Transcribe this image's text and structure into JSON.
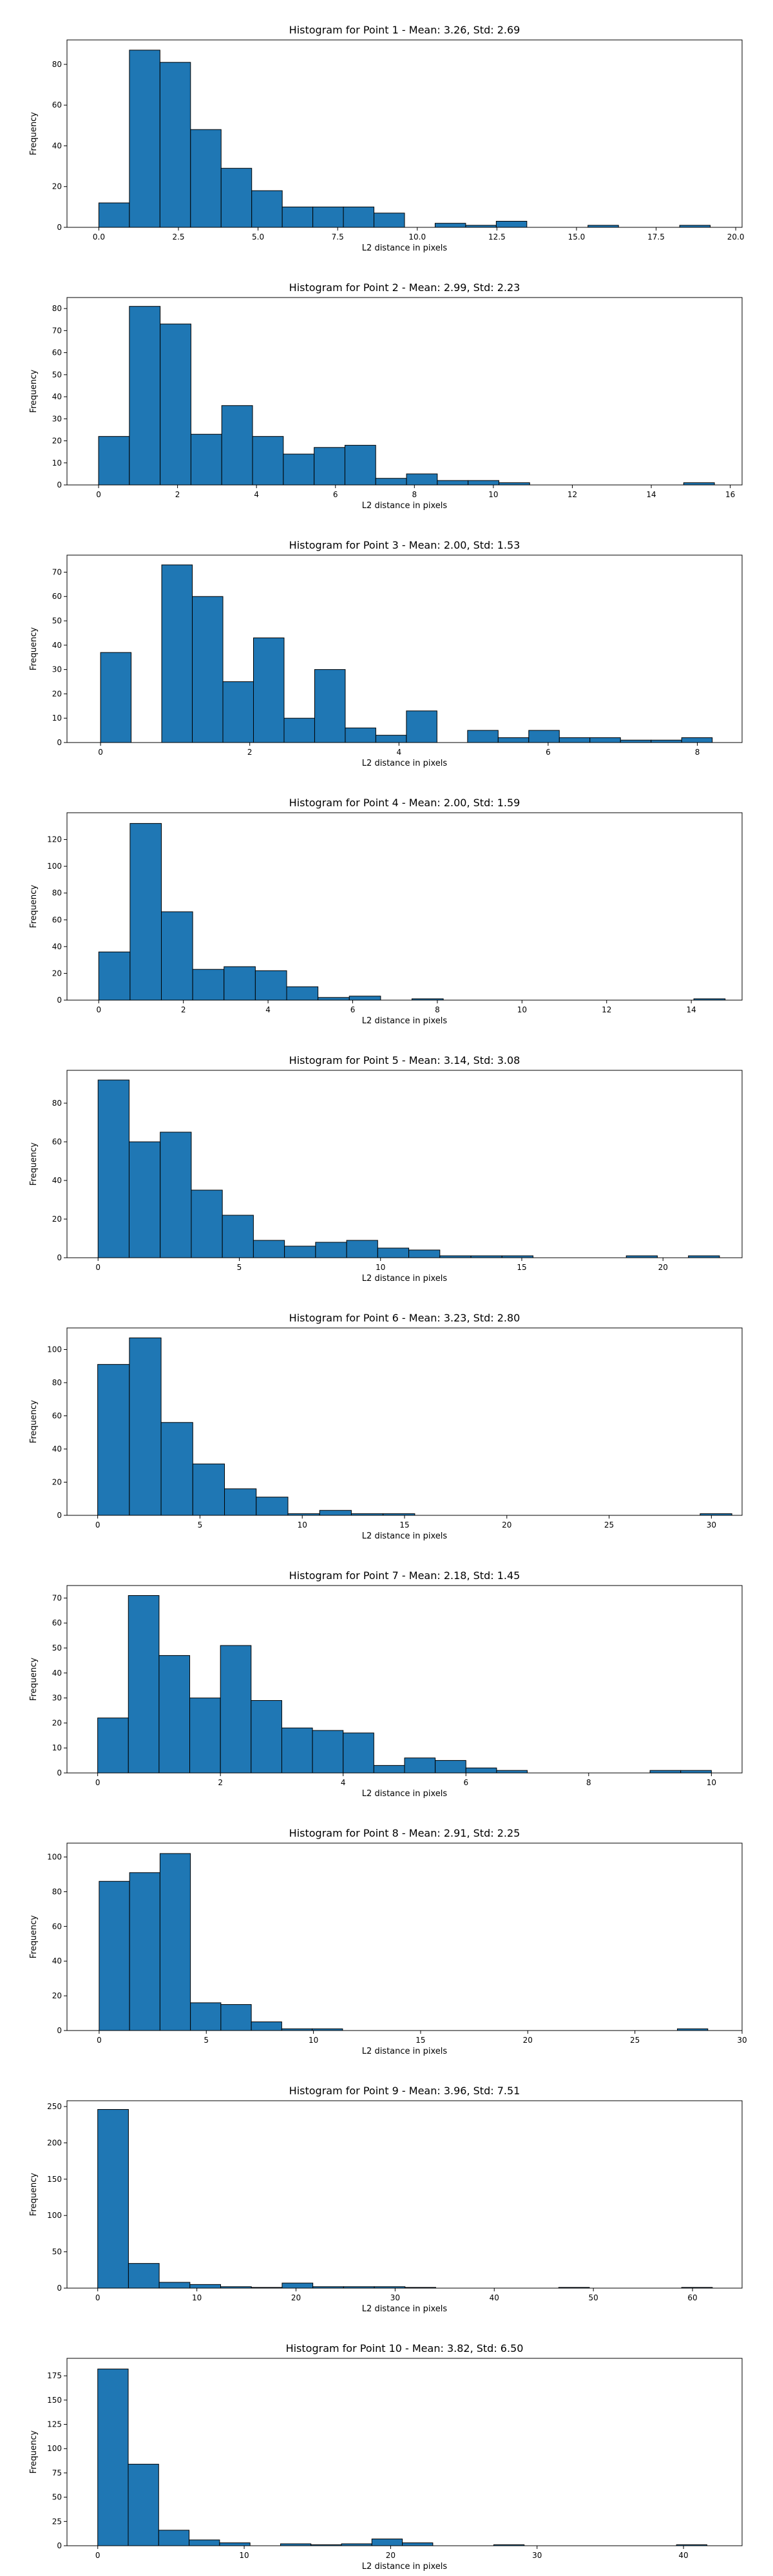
{
  "figure": {
    "background": "#ffffff",
    "bar_color": "#1f77b4",
    "bar_edge": "#000000"
  },
  "chart_data": [
    {
      "type": "bar",
      "title": "Histogram for Point 1 - Mean: 3.26, Std: 2.69",
      "xlabel": "L2 distance in pixels",
      "ylabel": "Frequency",
      "xlim": [
        -1,
        20.2
      ],
      "ylim": [
        0,
        92
      ],
      "xticks": [
        0.0,
        2.5,
        5.0,
        7.5,
        10.0,
        12.5,
        15.0,
        17.5,
        20.0
      ],
      "xtick_labels": [
        "0.0",
        "2.5",
        "5.0",
        "7.5",
        "10.0",
        "12.5",
        "15.0",
        "17.5",
        "20.0"
      ],
      "yticks": [
        0,
        20,
        40,
        60,
        80
      ],
      "ytick_labels": [
        "0",
        "20",
        "40",
        "60",
        "80"
      ],
      "bin_start": 0.0,
      "bin_width": 0.96,
      "counts": [
        12,
        87,
        81,
        48,
        29,
        18,
        10,
        10,
        10,
        7,
        0,
        2,
        1,
        3,
        0,
        0,
        1,
        0,
        0,
        1
      ]
    },
    {
      "type": "bar",
      "title": "Histogram for Point 2 - Mean: 2.99, Std: 2.23",
      "xlabel": "L2 distance in pixels",
      "ylabel": "Frequency",
      "xlim": [
        -0.8,
        16.3
      ],
      "ylim": [
        0,
        85
      ],
      "xticks": [
        0,
        2,
        4,
        6,
        8,
        10,
        12,
        14,
        16
      ],
      "xtick_labels": [
        "0",
        "2",
        "4",
        "6",
        "8",
        "10",
        "12",
        "14",
        "16"
      ],
      "yticks": [
        0,
        10,
        20,
        30,
        40,
        50,
        60,
        70,
        80
      ],
      "ytick_labels": [
        "0",
        "10",
        "20",
        "30",
        "40",
        "50",
        "60",
        "70",
        "80"
      ],
      "bin_start": 0.0,
      "bin_width": 0.78,
      "counts": [
        22,
        81,
        73,
        23,
        36,
        22,
        14,
        17,
        18,
        3,
        5,
        2,
        2,
        1,
        0,
        0,
        0,
        0,
        0,
        1
      ]
    },
    {
      "type": "bar",
      "title": "Histogram for Point 3 - Mean: 2.00, Std: 1.53",
      "xlabel": "L2 distance in pixels",
      "ylabel": "Frequency",
      "xlim": [
        -0.45,
        8.6
      ],
      "ylim": [
        0,
        77
      ],
      "xticks": [
        0,
        2,
        4,
        6,
        8
      ],
      "xtick_labels": [
        "0",
        "2",
        "4",
        "6",
        "8"
      ],
      "yticks": [
        0,
        10,
        20,
        30,
        40,
        50,
        60,
        70
      ],
      "ytick_labels": [
        "0",
        "10",
        "20",
        "30",
        "40",
        "50",
        "60",
        "70"
      ],
      "bin_start": 0.0,
      "bin_width": 0.41,
      "counts": [
        37,
        0,
        73,
        60,
        25,
        43,
        10,
        30,
        6,
        3,
        13,
        0,
        5,
        2,
        5,
        2,
        2,
        1,
        1,
        2
      ]
    },
    {
      "type": "bar",
      "title": "Histogram for Point 4 - Mean: 2.00, Std: 1.59",
      "xlabel": "L2 distance in pixels",
      "ylabel": "Frequency",
      "xlim": [
        -0.75,
        15.2
      ],
      "ylim": [
        0,
        140
      ],
      "xticks": [
        0,
        2,
        4,
        6,
        8,
        10,
        12,
        14
      ],
      "xtick_labels": [
        "0",
        "2",
        "4",
        "6",
        "8",
        "10",
        "12",
        "14"
      ],
      "yticks": [
        0,
        20,
        40,
        60,
        80,
        100,
        120
      ],
      "ytick_labels": [
        "0",
        "20",
        "40",
        "60",
        "80",
        "100",
        "120"
      ],
      "bin_start": 0.0,
      "bin_width": 0.74,
      "counts": [
        36,
        132,
        66,
        23,
        25,
        22,
        10,
        2,
        3,
        0,
        1,
        0,
        0,
        0,
        0,
        0,
        0,
        0,
        0,
        1
      ]
    },
    {
      "type": "bar",
      "title": "Histogram for Point 5 - Mean: 3.14, Std: 3.08",
      "xlabel": "L2 distance in pixels",
      "ylabel": "Frequency",
      "xlim": [
        -1.1,
        22.8
      ],
      "ylim": [
        0,
        97
      ],
      "xticks": [
        0,
        5,
        10,
        15,
        20
      ],
      "xtick_labels": [
        "0",
        "5",
        "10",
        "15",
        "20"
      ],
      "yticks": [
        0,
        20,
        40,
        60,
        80
      ],
      "ytick_labels": [
        "0",
        "20",
        "40",
        "60",
        "80"
      ],
      "bin_start": 0.0,
      "bin_width": 1.1,
      "counts": [
        92,
        60,
        65,
        35,
        22,
        9,
        6,
        8,
        9,
        5,
        4,
        1,
        1,
        1,
        0,
        0,
        0,
        1,
        0,
        1
      ]
    },
    {
      "type": "bar",
      "title": "Histogram for Point 6 - Mean: 3.23, Std: 2.80",
      "xlabel": "L2 distance in pixels",
      "ylabel": "Frequency",
      "xlim": [
        -1.5,
        31.5
      ],
      "ylim": [
        0,
        113
      ],
      "xticks": [
        0,
        5,
        10,
        15,
        20,
        25,
        30
      ],
      "xtick_labels": [
        "0",
        "5",
        "10",
        "15",
        "20",
        "25",
        "30"
      ],
      "yticks": [
        0,
        20,
        40,
        60,
        80,
        100
      ],
      "ytick_labels": [
        "0",
        "20",
        "40",
        "60",
        "80",
        "100"
      ],
      "bin_start": 0.0,
      "bin_width": 1.55,
      "counts": [
        91,
        107,
        56,
        31,
        16,
        11,
        1,
        3,
        1,
        1,
        0,
        0,
        0,
        0,
        0,
        0,
        0,
        0,
        0,
        1
      ]
    },
    {
      "type": "bar",
      "title": "Histogram for Point 7 - Mean: 2.18, Std: 1.45",
      "xlabel": "L2 distance in pixels",
      "ylabel": "Frequency",
      "xlim": [
        -0.5,
        10.5
      ],
      "ylim": [
        0,
        75
      ],
      "xticks": [
        0,
        2,
        4,
        6,
        8,
        10
      ],
      "xtick_labels": [
        "0",
        "2",
        "4",
        "6",
        "8",
        "10"
      ],
      "yticks": [
        0,
        10,
        20,
        30,
        40,
        50,
        60,
        70
      ],
      "ytick_labels": [
        "0",
        "10",
        "20",
        "30",
        "40",
        "50",
        "60",
        "70"
      ],
      "bin_start": 0.0,
      "bin_width": 0.5,
      "counts": [
        22,
        71,
        47,
        30,
        51,
        29,
        18,
        17,
        16,
        3,
        6,
        5,
        2,
        1,
        0,
        0,
        0,
        0,
        1,
        1
      ]
    },
    {
      "type": "bar",
      "title": "Histogram for Point 8 - Mean: 2.91, Std: 2.25",
      "xlabel": "L2 distance in pixels",
      "ylabel": "Frequency",
      "xlim": [
        -1.5,
        30
      ],
      "ylim": [
        0,
        108
      ],
      "xticks": [
        0,
        5,
        10,
        15,
        20,
        25,
        30
      ],
      "xtick_labels": [
        "0",
        "5",
        "10",
        "15",
        "20",
        "25",
        "30"
      ],
      "yticks": [
        0,
        20,
        40,
        60,
        80,
        100
      ],
      "ytick_labels": [
        "0",
        "20",
        "40",
        "60",
        "80",
        "100"
      ],
      "bin_start": 0.0,
      "bin_width": 1.42,
      "counts": [
        86,
        91,
        102,
        16,
        15,
        5,
        1,
        1,
        0,
        0,
        0,
        0,
        0,
        0,
        0,
        0,
        0,
        0,
        0,
        1
      ]
    },
    {
      "type": "bar",
      "title": "Histogram for Point 9 - Mean: 3.96, Std: 7.51",
      "xlabel": "L2 distance in pixels",
      "ylabel": "Frequency",
      "xlim": [
        -3.1,
        65
      ],
      "ylim": [
        0,
        258
      ],
      "xticks": [
        0,
        10,
        20,
        30,
        40,
        50,
        60
      ],
      "xtick_labels": [
        "0",
        "10",
        "20",
        "30",
        "40",
        "50",
        "60"
      ],
      "yticks": [
        0,
        50,
        100,
        150,
        200,
        250
      ],
      "ytick_labels": [
        "0",
        "50",
        "100",
        "150",
        "200",
        "250"
      ],
      "bin_start": 0.0,
      "bin_width": 3.1,
      "counts": [
        246,
        34,
        8,
        5,
        2,
        1,
        7,
        2,
        2,
        2,
        1,
        0,
        0,
        0,
        0,
        1,
        0,
        0,
        0,
        1
      ]
    },
    {
      "type": "bar",
      "title": "Histogram for Point 10 - Mean: 3.82, Std: 6.50",
      "xlabel": "L2 distance in pixels",
      "ylabel": "Frequency",
      "xlim": [
        -2.1,
        44
      ],
      "ylim": [
        0,
        193
      ],
      "xticks": [
        0,
        10,
        20,
        30,
        40
      ],
      "xtick_labels": [
        "0",
        "10",
        "20",
        "30",
        "40"
      ],
      "yticks": [
        0,
        25,
        50,
        75,
        100,
        125,
        150,
        175
      ],
      "ytick_labels": [
        "0",
        "25",
        "50",
        "75",
        "100",
        "125",
        "150",
        "175"
      ],
      "bin_start": 0.0,
      "bin_width": 2.08,
      "counts": [
        182,
        84,
        16,
        6,
        3,
        0,
        2,
        1,
        2,
        7,
        3,
        0,
        0,
        1,
        0,
        0,
        0,
        0,
        0,
        1
      ]
    }
  ]
}
